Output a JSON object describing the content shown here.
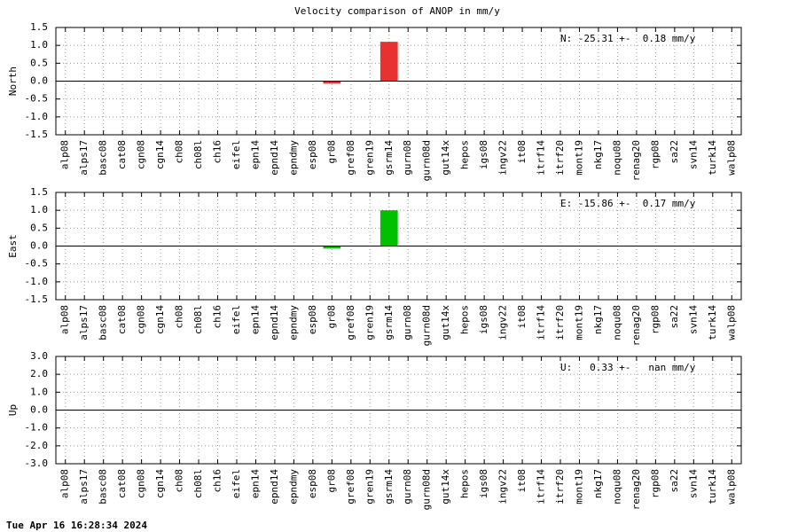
{
  "title": "Velocity comparison of ANOP in mm/y",
  "footer": "Tue Apr 16 16:28:34 2024",
  "chart_data": [
    {
      "type": "bar",
      "ylabel": "North",
      "color": "#e83232",
      "annotation": "N: -25.31 +-  0.18 mm/y",
      "grid": true,
      "categories": [
        "alp08",
        "alps17",
        "basc08",
        "cat08",
        "cgn08",
        "cgn14",
        "ch08",
        "ch08l",
        "ch16",
        "eifel",
        "epn14",
        "epnd14",
        "epndmy",
        "esp08",
        "gr08",
        "gref08",
        "gren19",
        "gsrm14",
        "gurn08",
        "gurn08d",
        "gut14x",
        "hepos",
        "igs08",
        "ingv22",
        "it08",
        "itrf14",
        "itrf20",
        "mont19",
        "nkg17",
        "noqu08",
        "renag20",
        "rgp08",
        "sa22",
        "svn14",
        "turk14",
        "walp08"
      ],
      "values": [
        0,
        0,
        0,
        0,
        0,
        0,
        0,
        0,
        0,
        0,
        0,
        0,
        0,
        0,
        -0.07,
        0,
        0,
        1.1,
        0,
        0,
        0,
        0,
        0,
        0,
        0,
        0,
        0,
        0,
        0,
        0,
        0,
        0,
        0,
        0,
        0,
        0
      ],
      "ylim": [
        -1.5,
        1.5
      ],
      "yticks": [
        1.5,
        {
          "value": 1.0,
          "label": "1.0"
        },
        0.5,
        {
          "value": 0,
          "label": "0.0"
        },
        -0.5,
        {
          "value": -1.0,
          "label": "-1.0"
        },
        -1.5
      ]
    },
    {
      "type": "bar",
      "ylabel": "East",
      "color": "#00c000",
      "annotation": "E: -15.86 +-  0.17 mm/y",
      "grid": true,
      "categories": [
        "alp08",
        "alps17",
        "basc08",
        "cat08",
        "cgn08",
        "cgn14",
        "ch08",
        "ch08l",
        "ch16",
        "eifel",
        "epn14",
        "epnd14",
        "epndmy",
        "esp08",
        "gr08",
        "gref08",
        "gren19",
        "gsrm14",
        "gurn08",
        "gurn08d",
        "gut14x",
        "hepos",
        "igs08",
        "ingv22",
        "it08",
        "itrf14",
        "itrf20",
        "mont19",
        "nkg17",
        "noqu08",
        "renag20",
        "rgp08",
        "sa22",
        "svn14",
        "turk14",
        "walp08"
      ],
      "values": [
        0,
        0,
        0,
        0,
        0,
        0,
        0,
        0,
        0,
        0,
        0,
        0,
        0,
        0,
        -0.07,
        0,
        0,
        1.0,
        0,
        0,
        0,
        0,
        0,
        0,
        0,
        0,
        0,
        0,
        0,
        0,
        0,
        0,
        0,
        0,
        0,
        0
      ],
      "ylim": [
        -1.5,
        1.5
      ],
      "yticks": [
        1.5,
        {
          "value": 1.0,
          "label": "1.0"
        },
        0.5,
        {
          "value": 0,
          "label": "0.0"
        },
        -0.5,
        {
          "value": -1.0,
          "label": "-1.0"
        },
        -1.5
      ]
    },
    {
      "type": "bar",
      "ylabel": "Up",
      "color": "#0050e0",
      "annotation": "U:   0.33 +-   nan mm/y",
      "grid": true,
      "categories": [
        "alp08",
        "alps17",
        "basc08",
        "cat08",
        "cgn08",
        "cgn14",
        "ch08",
        "ch08l",
        "ch16",
        "eifel",
        "epn14",
        "epnd14",
        "epndmy",
        "esp08",
        "gr08",
        "gref08",
        "gren19",
        "gsrm14",
        "gurn08",
        "gurn08d",
        "gut14x",
        "hepos",
        "igs08",
        "ingv22",
        "it08",
        "itrf14",
        "itrf20",
        "mont19",
        "nkg17",
        "noqu08",
        "renag20",
        "rgp08",
        "sa22",
        "svn14",
        "turk14",
        "walp08"
      ],
      "values": [
        0,
        0,
        0,
        0,
        0,
        0,
        0,
        0,
        0,
        0,
        0,
        0,
        0,
        0,
        0,
        0,
        0,
        0,
        0,
        0,
        0,
        0,
        0,
        0,
        0,
        0,
        0,
        0,
        0,
        0,
        0,
        0,
        0,
        0,
        0,
        0
      ],
      "ylim": [
        -3,
        3
      ],
      "yticks": [
        {
          "value": 3,
          "label": "3.0"
        },
        {
          "value": 2,
          "label": "2.0"
        },
        {
          "value": 1,
          "label": "1.0"
        },
        {
          "value": 0,
          "label": "0.0"
        },
        {
          "value": -1,
          "label": "-1.0"
        },
        {
          "value": -2,
          "label": "-2.0"
        },
        {
          "value": -3,
          "label": "-3.0"
        }
      ]
    }
  ]
}
